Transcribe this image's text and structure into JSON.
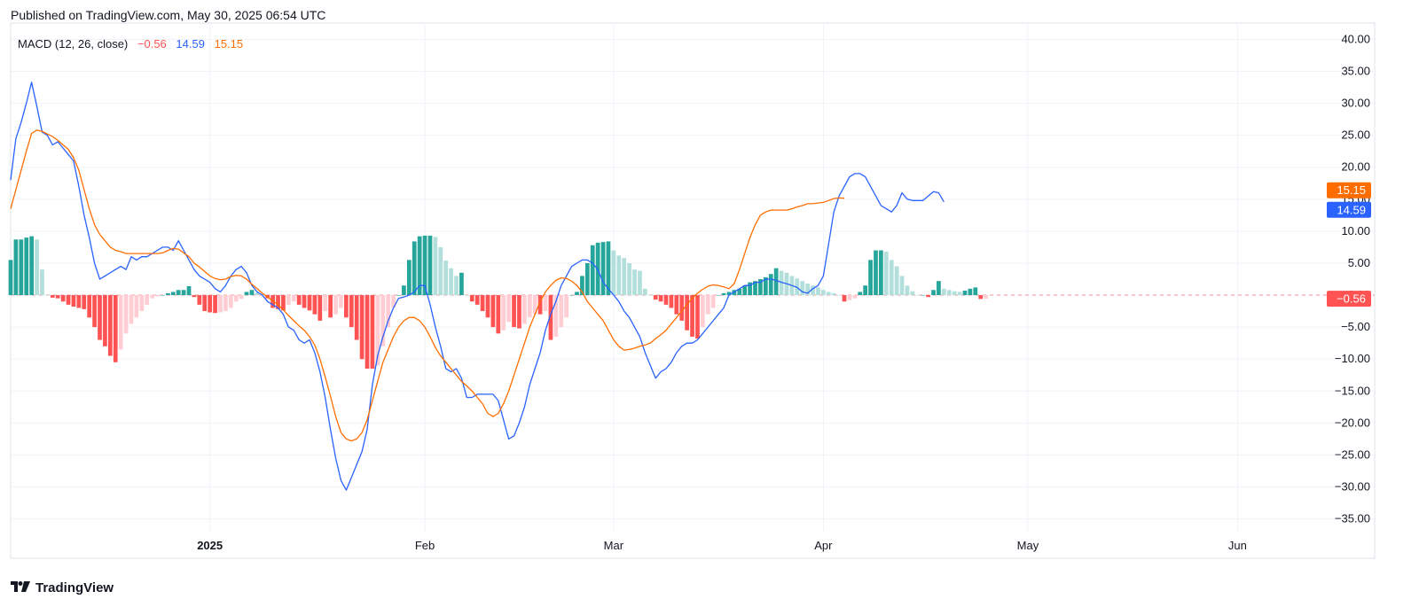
{
  "header": {
    "published": "Published on TradingView.com, May 30, 2025 06:54 UTC"
  },
  "legend": {
    "indicator": "MACD (12, 26, close)",
    "histogram_value": "−0.56",
    "macd_value": "14.59",
    "signal_value": "15.15"
  },
  "footer": {
    "brand": "TradingView"
  },
  "colors": {
    "macd": "#2962ff",
    "signal": "#ff6d00",
    "hist_pos_strong": "#26a69a",
    "hist_pos_weak": "#b2dfdb",
    "hist_neg_strong": "#ff5252",
    "hist_neg_weak": "#ffcdd2",
    "grid": "#f0f3fa"
  },
  "chart_data": {
    "type": "line",
    "title": "MACD (12, 26, close)",
    "ylim": [
      -37,
      42
    ],
    "y_ticks": [
      "40.00",
      "35.00",
      "30.00",
      "25.00",
      "20.00",
      "15.00",
      "10.00",
      "5.00",
      "0.00",
      "−5.00",
      "−10.00",
      "−15.00",
      "−20.00",
      "−25.00",
      "−30.00",
      "−35.00"
    ],
    "y_tick_values": [
      40,
      35,
      30,
      25,
      20,
      15,
      10,
      5,
      0,
      -5,
      -10,
      -15,
      -20,
      -25,
      -30,
      -35
    ],
    "x_ticks": [
      {
        "label": "2025",
        "index": 38,
        "bold": true
      },
      {
        "label": "Feb",
        "index": 79,
        "bold": false
      },
      {
        "label": "Mar",
        "index": 115,
        "bold": false
      },
      {
        "label": "Apr",
        "index": 155,
        "bold": false
      },
      {
        "label": "May",
        "index": 194,
        "bold": false
      },
      {
        "label": "Jun",
        "index": 234,
        "bold": false
      }
    ],
    "x_range": [
      0,
      250
    ],
    "series": [
      {
        "name": "MACD",
        "values": [
          18,
          24.5,
          27,
          30,
          33.3,
          29.5,
          25.5,
          25,
          23.5,
          24,
          23,
          22,
          21,
          17,
          12.5,
          9,
          5,
          2.5,
          3,
          3.5,
          4,
          4.5,
          4,
          6,
          5.5,
          6,
          6,
          6.5,
          7,
          7.5,
          7.5,
          7,
          8.5,
          7,
          5.5,
          4,
          3,
          2.5,
          2,
          1,
          0.5,
          1.5,
          3,
          4,
          4.5,
          3.5,
          1.5,
          0.5,
          0,
          -1,
          -1.5,
          -2,
          -3,
          -5,
          -5.5,
          -7,
          -7.5,
          -7,
          -9,
          -12,
          -16,
          -21,
          -25.5,
          -29,
          -30.5,
          -28.5,
          -26.5,
          -24.5,
          -21,
          -14,
          -9.5,
          -6.5,
          -4,
          -2,
          -0.5,
          -0.3,
          0,
          0.5,
          1.5,
          1.5,
          -1.5,
          -5,
          -8,
          -11.5,
          -12,
          -11.5,
          -13,
          -16,
          -16,
          -15.5,
          -15.5,
          -15.5,
          -15.5,
          -16.5,
          -19.5,
          -22.5,
          -22,
          -20,
          -17.5,
          -14,
          -11.5,
          -9,
          -5.5,
          -3,
          -1,
          1.5,
          3,
          4.5,
          5,
          5.5,
          5.5,
          5,
          4,
          2,
          1,
          0,
          -1,
          -2.5,
          -3.5,
          -5,
          -6.5,
          -9,
          -11,
          -13,
          -12,
          -11.5,
          -10.5,
          -9,
          -8,
          -7.5,
          -7.5,
          -7,
          -6,
          -5,
          -4,
          -3,
          -2,
          0,
          0.5,
          1,
          1.5,
          1.5,
          2,
          2,
          2.5,
          2.5,
          2.3,
          2,
          1.8,
          1.5,
          1.2,
          0.5,
          0.3,
          1,
          1.5,
          3,
          8,
          13,
          15.5,
          17,
          18.5,
          19,
          19,
          18.5,
          17,
          15.5,
          14,
          13.5,
          13,
          14,
          16,
          15,
          14.8,
          14.8,
          14.8,
          15.5,
          16.2,
          16,
          14.59
        ]
      },
      {
        "name": "Signal",
        "values": [
          13.5,
          16.5,
          19.5,
          22.5,
          25.3,
          25.8,
          25.6,
          25.2,
          24.8,
          24.2,
          23.5,
          22.8,
          21.5,
          19.5,
          16.5,
          13.5,
          11,
          9.5,
          8.5,
          7.5,
          7,
          6.8,
          6.5,
          6.5,
          6.5,
          6.5,
          6.5,
          6.5,
          6.5,
          6.6,
          7,
          7.3,
          7.2,
          6.6,
          6,
          5,
          4.4,
          3.7,
          3,
          2.6,
          2.4,
          2.5,
          2.9,
          3.1,
          3,
          2.5,
          1.7,
          1,
          0.3,
          -0.3,
          -0.9,
          -1.5,
          -2.3,
          -3.2,
          -4,
          -4.8,
          -5.5,
          -6.5,
          -7.8,
          -10,
          -12.8,
          -15.8,
          -19,
          -21.5,
          -22.5,
          -22.8,
          -22.5,
          -21.5,
          -19.5,
          -16.5,
          -13.5,
          -10.5,
          -8.5,
          -6.5,
          -5,
          -4,
          -3.5,
          -3.5,
          -4,
          -5,
          -6.5,
          -8.2,
          -9.5,
          -10.5,
          -11.5,
          -12.5,
          -13.5,
          -14.2,
          -15,
          -16,
          -17,
          -18.5,
          -19,
          -18.5,
          -17,
          -15,
          -12.5,
          -10,
          -7.5,
          -5,
          -3,
          -1,
          0.5,
          1.5,
          2.3,
          2.7,
          2.6,
          2.2,
          1.5,
          0.5,
          -1,
          -2,
          -3,
          -4,
          -5.5,
          -7,
          -8,
          -8.6,
          -8.5,
          -8.3,
          -8,
          -7.8,
          -7.5,
          -6.8,
          -6.2,
          -5.5,
          -4.5,
          -3.5,
          -2.5,
          -1.5,
          -0.5,
          0.3,
          0.9,
          1.4,
          1.6,
          1.5,
          1.3,
          1,
          1.8,
          4,
          6.5,
          9,
          11,
          12.5,
          13,
          13.3,
          13.3,
          13.3,
          13.3,
          13.5,
          13.8,
          14,
          14.3,
          14.3,
          14.4,
          14.5,
          14.8,
          15.1,
          15.2,
          15.15
        ]
      }
    ],
    "histogram": {
      "name": "Histogram",
      "values": [
        5.5,
        8.7,
        8.7,
        9,
        9.2,
        8.7,
        4,
        0,
        -0.4,
        -0.5,
        -1,
        -1.5,
        -1.8,
        -2,
        -2.2,
        -3.5,
        -5,
        -7,
        -8,
        -9.5,
        -10.5,
        -8.5,
        -6,
        -4.5,
        -3.5,
        -2.5,
        -1.5,
        -0.5,
        -0.2,
        0,
        0.3,
        0.5,
        0.8,
        0.8,
        1.4,
        -0.3,
        -1.5,
        -2.5,
        -2.7,
        -2.8,
        -2.7,
        -2.5,
        -2,
        -1,
        -0.6,
        0.5,
        0.8,
        0.4,
        0.1,
        -0.5,
        -2,
        -2.2,
        -2.4,
        -1.5,
        -1,
        -1.5,
        -2,
        -2.4,
        -3,
        -4,
        -2.5,
        -3.5,
        -3,
        -2,
        -3.5,
        -5,
        -7,
        -10,
        -11.5,
        -11.5,
        -11,
        -8,
        -5,
        -2,
        0,
        1.5,
        5.5,
        8.4,
        9.2,
        9.3,
        9.3,
        9.1,
        7.5,
        5.4,
        4.2,
        3,
        3.5,
        0,
        -1,
        -1.5,
        -2.5,
        -3.5,
        -5,
        -6,
        -5.5,
        -4.2,
        -5,
        -5.2,
        -4.5,
        -3.5,
        -3,
        -3,
        -2.5,
        -7,
        -6.5,
        -5,
        -3.5,
        0,
        0.5,
        3,
        5,
        7.8,
        8.2,
        8.3,
        8.4,
        7,
        6.2,
        5.8,
        5,
        4,
        3.8,
        1,
        0,
        -0.7,
        -1,
        -1.5,
        -2,
        -3,
        -4,
        -5.5,
        -6.5,
        -6.8,
        -5,
        -3,
        -2,
        0,
        0.3,
        0.5,
        0.8,
        1,
        1.5,
        2,
        2.2,
        2.5,
        2.8,
        3.3,
        4.2,
        3.8,
        3.5,
        3,
        2.6,
        2.2,
        1.8,
        1.5,
        1.2,
        0.8,
        0.5,
        0.3,
        0,
        -1,
        -0.8,
        -0.5,
        0.5,
        1.5,
        5.5,
        7,
        7,
        6.8,
        5.5,
        4.5,
        3,
        1.5,
        0.6,
        0,
        0,
        -0.3,
        0.8,
        2.2,
        1,
        0.8,
        0.6,
        0.5,
        0.7,
        1,
        1.2,
        -0.6,
        -0.56
      ]
    },
    "last_values": {
      "histogram": "−0.56",
      "macd": "14.59",
      "signal": "15.15"
    }
  }
}
